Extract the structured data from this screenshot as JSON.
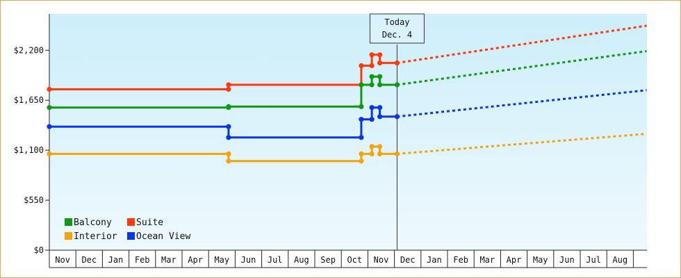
{
  "chart_data": {
    "type": "line",
    "title": "",
    "xlabel": "",
    "ylabel": "",
    "ylim": [
      0,
      2600
    ],
    "y_ticks": [
      {
        "value": 0,
        "label": "$0"
      },
      {
        "value": 550,
        "label": "$550"
      },
      {
        "value": 1100,
        "label": "$1,100"
      },
      {
        "value": 1650,
        "label": "$1,650"
      },
      {
        "value": 2200,
        "label": "$2,200"
      }
    ],
    "x_months": [
      "Nov",
      "Dec",
      "Jan",
      "Feb",
      "Mar",
      "Apr",
      "May",
      "Jun",
      "Jul",
      "Aug",
      "Sep",
      "Oct",
      "Nov",
      "Dec",
      "Jan",
      "Feb",
      "Mar",
      "Apr",
      "May",
      "Jun",
      "Jul",
      "Aug"
    ],
    "grid": false,
    "background_gradient": [
      "#cdeefa",
      "#eef9fd"
    ],
    "today": {
      "line1": "Today",
      "line2": "Dec. 4",
      "month_index": 13.1
    },
    "legend": {
      "placement": "bottom-left",
      "items": [
        {
          "label": "Balcony",
          "color": "#119911"
        },
        {
          "label": "Suite",
          "color": "#ff3a0a"
        },
        {
          "label": "Interior",
          "color": "#f5a30a"
        },
        {
          "label": "Ocean View",
          "color": "#0a35ee"
        }
      ]
    },
    "series": [
      {
        "name": "Suite",
        "color": "#ff3a0a",
        "points": [
          [
            0,
            1770
          ],
          [
            6.75,
            1770
          ],
          [
            6.75,
            1820
          ],
          [
            11.75,
            1820
          ],
          [
            11.75,
            2030
          ],
          [
            12.15,
            2030
          ],
          [
            12.15,
            2150
          ],
          [
            12.45,
            2150
          ],
          [
            12.45,
            2060
          ],
          [
            13.1,
            2060
          ]
        ],
        "forecast": [
          [
            13.1,
            2060
          ],
          [
            22.5,
            2470
          ]
        ]
      },
      {
        "name": "Balcony",
        "color": "#119911",
        "points": [
          [
            0,
            1570
          ],
          [
            6.75,
            1570
          ],
          [
            6.75,
            1580
          ],
          [
            11.75,
            1580
          ],
          [
            11.75,
            1820
          ],
          [
            12.15,
            1820
          ],
          [
            12.15,
            1910
          ],
          [
            12.45,
            1910
          ],
          [
            12.45,
            1820
          ],
          [
            13.1,
            1820
          ]
        ],
        "forecast": [
          [
            13.1,
            1820
          ],
          [
            22.5,
            2190
          ]
        ]
      },
      {
        "name": "Ocean View",
        "color": "#0a35ee",
        "points": [
          [
            0,
            1360
          ],
          [
            6.75,
            1360
          ],
          [
            6.75,
            1240
          ],
          [
            11.75,
            1240
          ],
          [
            11.75,
            1440
          ],
          [
            12.15,
            1440
          ],
          [
            12.15,
            1570
          ],
          [
            12.45,
            1570
          ],
          [
            12.45,
            1470
          ],
          [
            13.1,
            1470
          ]
        ],
        "forecast": [
          [
            13.1,
            1470
          ],
          [
            22.5,
            1760
          ]
        ]
      },
      {
        "name": "Interior",
        "color": "#f5a30a",
        "points": [
          [
            0,
            1060
          ],
          [
            6.75,
            1060
          ],
          [
            6.75,
            980
          ],
          [
            11.75,
            980
          ],
          [
            11.75,
            1060
          ],
          [
            12.15,
            1060
          ],
          [
            12.15,
            1140
          ],
          [
            12.45,
            1140
          ],
          [
            12.45,
            1060
          ],
          [
            13.1,
            1060
          ]
        ],
        "forecast": [
          [
            13.1,
            1060
          ],
          [
            22.5,
            1280
          ]
        ]
      }
    ]
  }
}
